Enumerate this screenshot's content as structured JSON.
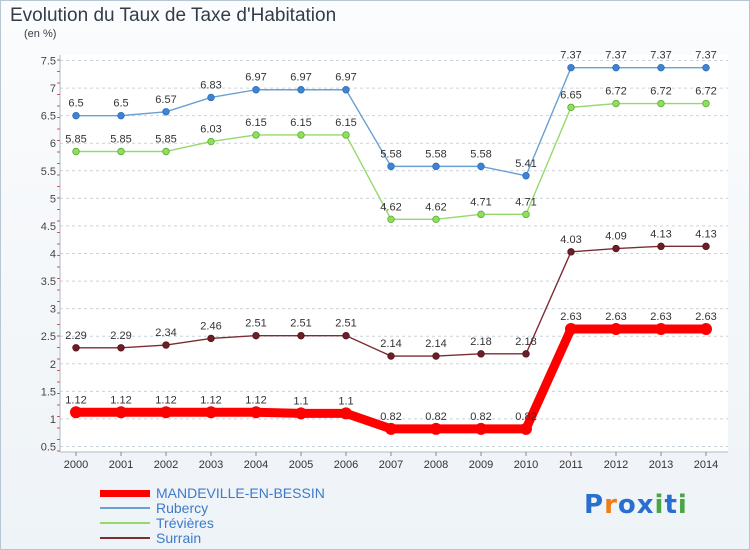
{
  "title": "Evolution du Taux de Taxe d'Habitation",
  "unit": "(en %)",
  "logo": [
    "P",
    "r",
    "o",
    "x",
    "i",
    "t",
    "i"
  ],
  "logo_colors": [
    "#2a6fd0",
    "#ee7d1a",
    "#2a6fd0",
    "#2a6fd0",
    "#4aa640",
    "#2a6fd0",
    "#4aa640"
  ],
  "chart_data": {
    "type": "line",
    "title": "Evolution du Taux de Taxe d'Habitation",
    "ylabel": "(en %)",
    "x": [
      "2000",
      "2001",
      "2002",
      "2003",
      "2004",
      "2005",
      "2006",
      "2007",
      "2008",
      "2009",
      "2010",
      "2011",
      "2012",
      "2013",
      "2014"
    ],
    "yticks": [
      "0.5",
      "1",
      "1.5",
      "2",
      "2.5",
      "3",
      "3.5",
      "4",
      "4.5",
      "5",
      "5.5",
      "6",
      "6.5",
      "7",
      "7.5"
    ],
    "ylim": [
      0.4,
      7.6
    ],
    "grid": "horizontal dashed",
    "series": [
      {
        "name": "MANDEVILLE-EN-BESSIN",
        "color": "#ff0000",
        "values": [
          1.12,
          1.12,
          1.12,
          1.12,
          1.12,
          1.1,
          1.1,
          0.82,
          0.82,
          0.82,
          0.82,
          2.63,
          2.63,
          2.63,
          2.63
        ],
        "labels": [
          "1.12",
          "1.12",
          "1.12",
          "1.12",
          "1.12",
          "1.1",
          "1.1",
          "0.82",
          "0.82",
          "0.82",
          "0.82",
          "2.63",
          "2.63",
          "2.63",
          "2.63"
        ]
      },
      {
        "name": "Rubercy",
        "color": "#6aa0d2",
        "values": [
          6.5,
          6.5,
          6.57,
          6.83,
          6.97,
          6.97,
          6.97,
          5.58,
          5.58,
          5.58,
          5.41,
          7.37,
          7.37,
          7.37,
          7.37
        ],
        "labels": [
          "6.5",
          "6.5",
          "6.57",
          "6.83",
          "6.97",
          "6.97",
          "6.97",
          "5.58",
          "5.58",
          "5.58",
          "5.41",
          "7.37",
          "7.37",
          "7.37",
          "7.37"
        ]
      },
      {
        "name": "Trévières",
        "color": "#94d96a",
        "values": [
          5.85,
          5.85,
          5.85,
          6.03,
          6.15,
          6.15,
          6.15,
          4.62,
          4.62,
          4.71,
          4.71,
          6.65,
          6.72,
          6.72,
          6.72
        ],
        "labels": [
          "5.85",
          "5.85",
          "5.85",
          "6.03",
          "6.15",
          "6.15",
          "6.15",
          "4.62",
          "4.62",
          "4.71",
          "4.71",
          "6.65",
          "6.72",
          "6.72",
          "6.72"
        ]
      },
      {
        "name": "Surrain",
        "color": "#7a2e33",
        "values": [
          2.29,
          2.29,
          2.34,
          2.46,
          2.51,
          2.51,
          2.51,
          2.14,
          2.14,
          2.18,
          2.18,
          4.03,
          4.09,
          4.13,
          4.13
        ],
        "labels": [
          "2.29",
          "2.29",
          "2.34",
          "2.46",
          "2.51",
          "2.51",
          "2.51",
          "2.14",
          "2.14",
          "2.18",
          "2.18",
          "4.03",
          "4.09",
          "4.13",
          "4.13"
        ]
      }
    ]
  }
}
